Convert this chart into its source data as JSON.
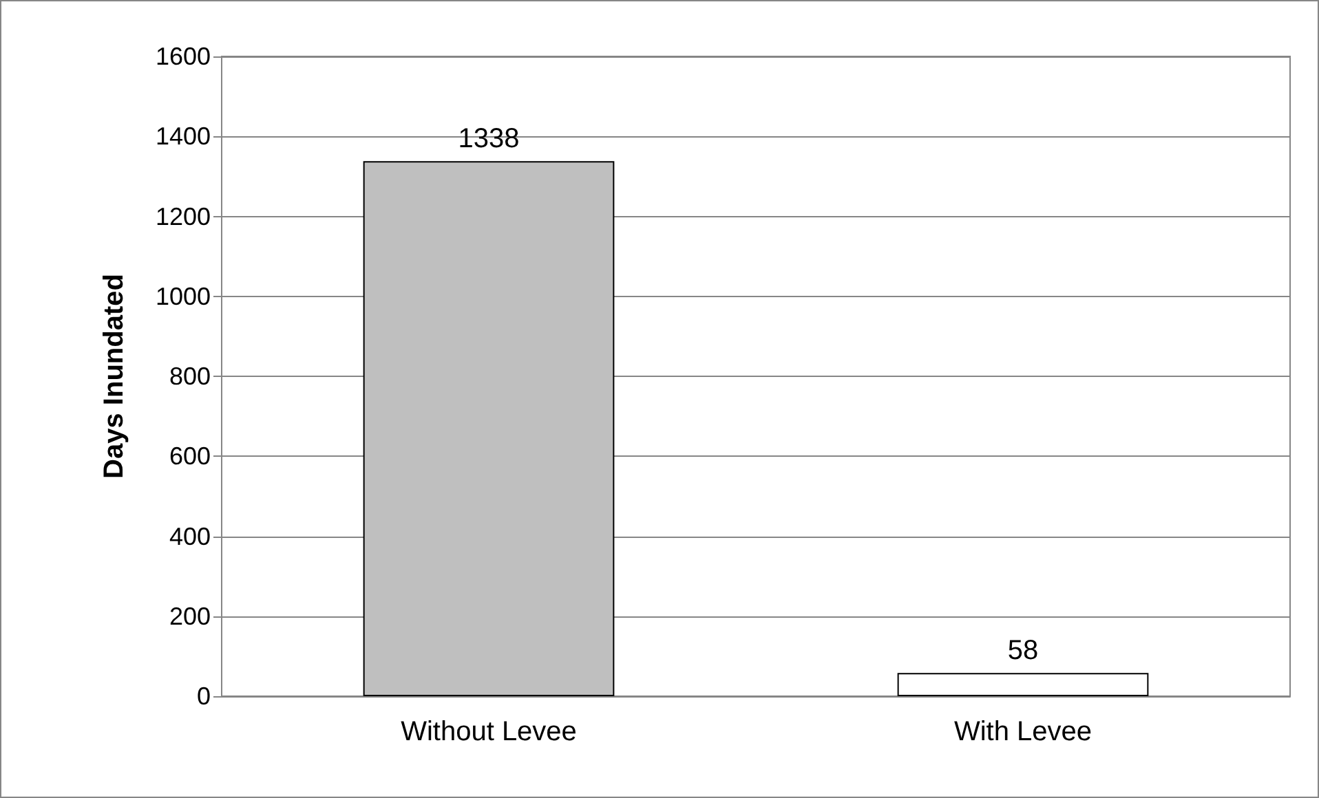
{
  "chart_data": {
    "type": "bar",
    "categories": [
      "Without Levee",
      "With Levee"
    ],
    "values": [
      1338,
      58
    ],
    "colors": [
      "#bfbfbf",
      "#ffffff"
    ],
    "ylabel": "Days Inundated",
    "ylim": [
      0,
      1600
    ],
    "yticks": [
      0,
      200,
      400,
      600,
      800,
      1000,
      1200,
      1400,
      1600
    ],
    "grid": "y",
    "data_labels": true
  }
}
